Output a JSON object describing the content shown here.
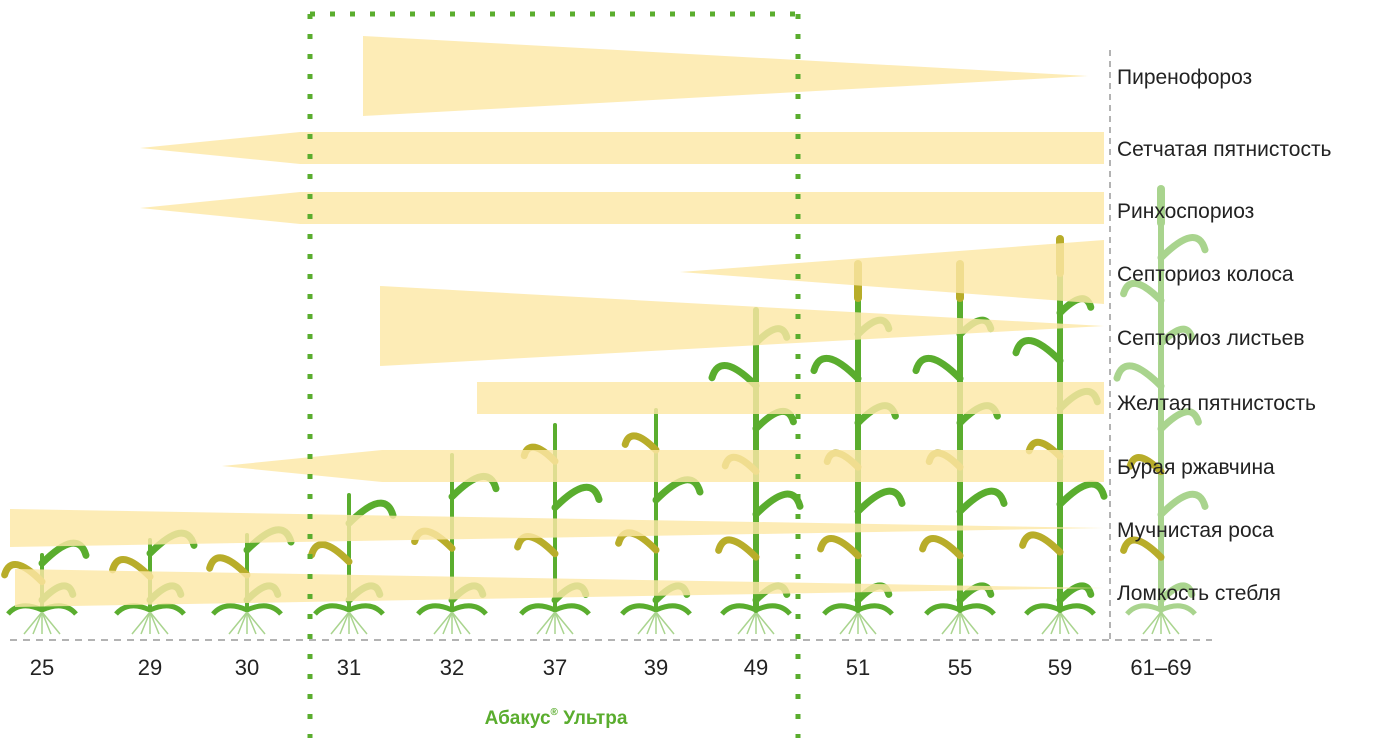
{
  "colors": {
    "band": "#fde8a6",
    "plant_green": "#5aad2e",
    "plant_olive": "#b8ad2a",
    "dotted_frame": "#5aad2e",
    "axis_dash": "#9a9a9a",
    "text": "#222222"
  },
  "chart_data": {
    "type": "timeline",
    "title": "",
    "xlabel": "",
    "ylabel": "",
    "x_ticks": [
      "25",
      "29",
      "30",
      "31",
      "32",
      "37",
      "39",
      "49",
      "51",
      "55",
      "59",
      "61–69"
    ],
    "product_window": {
      "label": "Абакус",
      "mark": "®",
      "label_suffix": " Ультра",
      "from_stage": "31",
      "to_stage": "49"
    },
    "diseases": [
      {
        "name": "Пиренофороз",
        "from": "31",
        "to": "61–69",
        "shape": "narrowing"
      },
      {
        "name": "Сетчатая пятнистость",
        "from": "29",
        "to": "61–69",
        "shape": "widening"
      },
      {
        "name": "Ринхоспориоз",
        "from": "29",
        "to": "61–69",
        "shape": "widening"
      },
      {
        "name": "Септориоз колоса",
        "from": "39",
        "to": "61–69",
        "shape": "widening"
      },
      {
        "name": "Септориоз листьев",
        "from": "31",
        "to": "61–69",
        "shape": "narrowing"
      },
      {
        "name": "Желтая пятнистость",
        "from": "32",
        "to": "61–69",
        "shape": "constant"
      },
      {
        "name": "Бурая ржавчина",
        "from": "30",
        "to": "61–69",
        "shape": "widening"
      },
      {
        "name": "Мучнистая роса",
        "from": "25",
        "to": "61–69",
        "shape": "narrowing"
      },
      {
        "name": "Ломкость стебля",
        "from": "25",
        "to": "61–69",
        "shape": "narrowing"
      }
    ],
    "grid": false,
    "legend": "right"
  }
}
